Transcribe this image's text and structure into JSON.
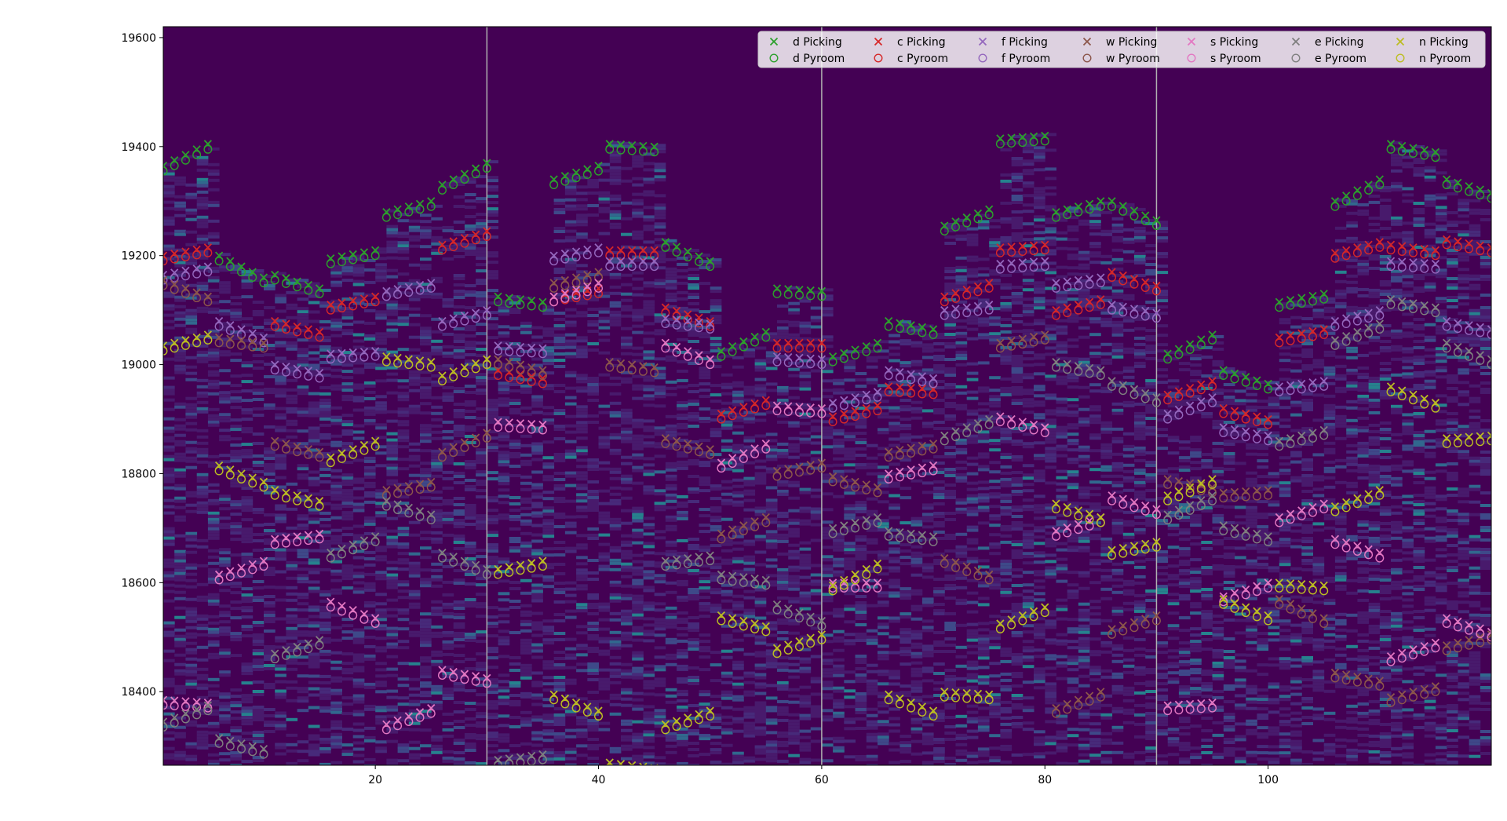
{
  "chart_data": {
    "type": "scatter",
    "title": "",
    "xlabel": "",
    "ylabel": "",
    "xlim": [
      1,
      120
    ],
    "ylim": [
      18265,
      19620
    ],
    "xticks": [
      20,
      40,
      60,
      80,
      100
    ],
    "yticks": [
      18400,
      18600,
      18800,
      19000,
      19200,
      19400,
      19600
    ],
    "vlines": [
      30,
      60,
      90
    ],
    "background": "spectrogram heatmap (viridis colormap)",
    "grid": false,
    "legend": {
      "placement": "top-right",
      "columns": 7
    },
    "marker_legend": {
      "picking": "x",
      "pyroom": "circle"
    },
    "series": [
      {
        "name": "d",
        "picking_label": "d Picking",
        "pyroom_label": "d Pyroom",
        "color": "#2ca02c",
        "segments": [
          [
            1,
            5,
            19365,
            19405
          ],
          [
            6,
            10,
            19200,
            19160
          ],
          [
            11,
            15,
            19165,
            19140
          ],
          [
            16,
            20,
            19195,
            19210
          ],
          [
            21,
            25,
            19280,
            19300
          ],
          [
            26,
            30,
            19330,
            19370
          ],
          [
            31,
            35,
            19125,
            19115
          ],
          [
            36,
            40,
            19340,
            19365
          ],
          [
            41,
            45,
            19405,
            19400
          ],
          [
            46,
            50,
            19225,
            19190
          ],
          [
            51,
            55,
            19025,
            19060
          ],
          [
            56,
            60,
            19140,
            19135
          ],
          [
            61,
            65,
            19015,
            19040
          ],
          [
            66,
            70,
            19080,
            19065
          ],
          [
            71,
            75,
            19255,
            19285
          ],
          [
            76,
            80,
            19415,
            19420
          ],
          [
            81,
            85,
            19280,
            19300
          ],
          [
            86,
            90,
            19300,
            19265
          ],
          [
            91,
            95,
            19020,
            19055
          ],
          [
            96,
            100,
            18990,
            18965
          ],
          [
            101,
            105,
            19115,
            19130
          ],
          [
            106,
            110,
            19300,
            19340
          ],
          [
            111,
            115,
            19405,
            19390
          ],
          [
            116,
            120,
            19340,
            19315
          ]
        ]
      },
      {
        "name": "c",
        "picking_label": "c Picking",
        "pyroom_label": "c Pyroom",
        "color": "#d62728",
        "segments": [
          [
            1,
            5,
            19200,
            19215
          ],
          [
            11,
            15,
            19080,
            19060
          ],
          [
            16,
            20,
            19110,
            19125
          ],
          [
            26,
            30,
            19220,
            19245
          ],
          [
            31,
            35,
            18990,
            18975
          ],
          [
            36,
            40,
            19125,
            19140
          ],
          [
            41,
            45,
            19210,
            19210
          ],
          [
            46,
            50,
            19105,
            19080
          ],
          [
            51,
            55,
            18910,
            18935
          ],
          [
            56,
            60,
            19040,
            19040
          ],
          [
            61,
            65,
            18905,
            18925
          ],
          [
            66,
            70,
            18960,
            18955
          ],
          [
            71,
            75,
            19125,
            19150
          ],
          [
            76,
            80,
            19215,
            19220
          ],
          [
            81,
            85,
            19100,
            19120
          ],
          [
            86,
            90,
            19170,
            19145
          ],
          [
            91,
            95,
            18945,
            18970
          ],
          [
            96,
            100,
            18920,
            18900
          ],
          [
            101,
            105,
            19050,
            19065
          ],
          [
            106,
            110,
            19205,
            19225
          ],
          [
            111,
            115,
            19220,
            19210
          ],
          [
            116,
            120,
            19230,
            19215
          ]
        ]
      },
      {
        "name": "f",
        "picking_label": "f Picking",
        "pyroom_label": "f Pyroom",
        "color": "#9467bd",
        "segments": [
          [
            1,
            5,
            19165,
            19180
          ],
          [
            6,
            10,
            19080,
            19050
          ],
          [
            11,
            15,
            19000,
            18985
          ],
          [
            16,
            20,
            19020,
            19025
          ],
          [
            21,
            25,
            19135,
            19150
          ],
          [
            26,
            30,
            19080,
            19100
          ],
          [
            31,
            35,
            19035,
            19030
          ],
          [
            36,
            40,
            19200,
            19215
          ],
          [
            41,
            45,
            19190,
            19190
          ],
          [
            46,
            50,
            19085,
            19075
          ],
          [
            56,
            60,
            19015,
            19010
          ],
          [
            61,
            65,
            18930,
            18950
          ],
          [
            66,
            70,
            18990,
            18975
          ],
          [
            71,
            75,
            19100,
            19110
          ],
          [
            76,
            80,
            19185,
            19190
          ],
          [
            81,
            85,
            19150,
            19160
          ],
          [
            86,
            90,
            19110,
            19095
          ],
          [
            91,
            95,
            18910,
            18940
          ],
          [
            96,
            100,
            18885,
            18870
          ],
          [
            101,
            105,
            18960,
            18970
          ],
          [
            106,
            110,
            19080,
            19100
          ],
          [
            111,
            115,
            19190,
            19185
          ],
          [
            116,
            120,
            19080,
            19065
          ]
        ]
      },
      {
        "name": "w",
        "picking_label": "w Picking",
        "pyroom_label": "w Pyroom",
        "color": "#8c564b",
        "segments": [
          [
            1,
            5,
            19155,
            19125
          ],
          [
            6,
            10,
            19050,
            19040
          ],
          [
            11,
            15,
            18860,
            18840
          ],
          [
            21,
            25,
            18770,
            18785
          ],
          [
            26,
            30,
            18840,
            18875
          ],
          [
            31,
            35,
            19010,
            18990
          ],
          [
            36,
            40,
            19150,
            19170
          ],
          [
            41,
            45,
            19005,
            18995
          ],
          [
            46,
            50,
            18865,
            18845
          ],
          [
            51,
            55,
            18690,
            18720
          ],
          [
            56,
            60,
            18805,
            18820
          ],
          [
            61,
            65,
            18795,
            18775
          ],
          [
            66,
            70,
            18840,
            18855
          ],
          [
            71,
            75,
            18645,
            18615
          ],
          [
            76,
            80,
            19040,
            19055
          ],
          [
            81,
            85,
            18370,
            18400
          ],
          [
            86,
            90,
            18515,
            18540
          ],
          [
            91,
            95,
            18790,
            18775
          ],
          [
            96,
            100,
            18765,
            18770
          ],
          [
            101,
            105,
            18570,
            18535
          ],
          [
            106,
            110,
            18435,
            18420
          ],
          [
            111,
            115,
            18390,
            18410
          ],
          [
            116,
            120,
            18485,
            18505
          ]
        ]
      },
      {
        "name": "s",
        "picking_label": "s Picking",
        "pyroom_label": "s Pyroom",
        "color": "#e377c2",
        "segments": [
          [
            1,
            5,
            18385,
            18380
          ],
          [
            6,
            10,
            18615,
            18640
          ],
          [
            11,
            15,
            18680,
            18690
          ],
          [
            16,
            20,
            18565,
            18535
          ],
          [
            21,
            25,
            18340,
            18370
          ],
          [
            26,
            30,
            18440,
            18425
          ],
          [
            31,
            35,
            18895,
            18890
          ],
          [
            36,
            40,
            19125,
            19150
          ],
          [
            46,
            50,
            19040,
            19010
          ],
          [
            51,
            55,
            18820,
            18855
          ],
          [
            56,
            60,
            18925,
            18920
          ],
          [
            61,
            65,
            18600,
            18600
          ],
          [
            66,
            70,
            18800,
            18815
          ],
          [
            76,
            80,
            18905,
            18885
          ],
          [
            81,
            85,
            18695,
            18720
          ],
          [
            86,
            90,
            18760,
            18735
          ],
          [
            91,
            95,
            18375,
            18380
          ],
          [
            96,
            100,
            18575,
            18600
          ],
          [
            101,
            105,
            18720,
            18745
          ],
          [
            106,
            110,
            18680,
            18655
          ],
          [
            111,
            115,
            18465,
            18490
          ],
          [
            116,
            120,
            18535,
            18510
          ]
        ]
      },
      {
        "name": "e",
        "picking_label": "e Picking",
        "pyroom_label": "e Pyroom",
        "color": "#7f7f7f",
        "segments": [
          [
            1,
            5,
            18345,
            18375
          ],
          [
            6,
            10,
            18315,
            18295
          ],
          [
            11,
            15,
            18470,
            18495
          ],
          [
            16,
            20,
            18655,
            18685
          ],
          [
            21,
            25,
            18750,
            18725
          ],
          [
            26,
            30,
            18655,
            18625
          ],
          [
            31,
            35,
            18275,
            18285
          ],
          [
            46,
            50,
            18640,
            18650
          ],
          [
            51,
            55,
            18615,
            18605
          ],
          [
            56,
            60,
            18560,
            18530
          ],
          [
            61,
            65,
            18700,
            18720
          ],
          [
            66,
            70,
            18695,
            18685
          ],
          [
            71,
            75,
            18870,
            18900
          ],
          [
            81,
            85,
            19005,
            18990
          ],
          [
            86,
            90,
            18970,
            18940
          ],
          [
            91,
            95,
            18725,
            18760
          ],
          [
            96,
            100,
            18705,
            18685
          ],
          [
            101,
            105,
            18860,
            18880
          ],
          [
            106,
            110,
            19045,
            19075
          ],
          [
            111,
            115,
            19120,
            19105
          ],
          [
            116,
            120,
            19040,
            19010
          ]
        ]
      },
      {
        "name": "n",
        "picking_label": "n Picking",
        "pyroom_label": "n Pyroom",
        "color": "#bcbd22",
        "segments": [
          [
            1,
            5,
            19035,
            19055
          ],
          [
            6,
            10,
            18815,
            18785
          ],
          [
            11,
            15,
            18770,
            18750
          ],
          [
            16,
            20,
            18830,
            18860
          ],
          [
            21,
            25,
            19015,
            19005
          ],
          [
            26,
            30,
            18980,
            19010
          ],
          [
            31,
            35,
            18625,
            18640
          ],
          [
            36,
            40,
            18395,
            18365
          ],
          [
            41,
            45,
            18270,
            18260
          ],
          [
            46,
            50,
            18340,
            18365
          ],
          [
            51,
            55,
            18540,
            18520
          ],
          [
            56,
            60,
            18480,
            18505
          ],
          [
            61,
            65,
            18595,
            18635
          ],
          [
            66,
            70,
            18395,
            18365
          ],
          [
            71,
            75,
            18400,
            18395
          ],
          [
            76,
            80,
            18525,
            18555
          ],
          [
            81,
            85,
            18745,
            18720
          ],
          [
            86,
            90,
            18660,
            18675
          ],
          [
            91,
            95,
            18760,
            18790
          ],
          [
            96,
            100,
            18570,
            18540
          ],
          [
            101,
            105,
            18600,
            18595
          ],
          [
            106,
            110,
            18740,
            18770
          ],
          [
            111,
            115,
            18960,
            18930
          ],
          [
            116,
            120,
            18865,
            18870
          ]
        ]
      }
    ]
  }
}
